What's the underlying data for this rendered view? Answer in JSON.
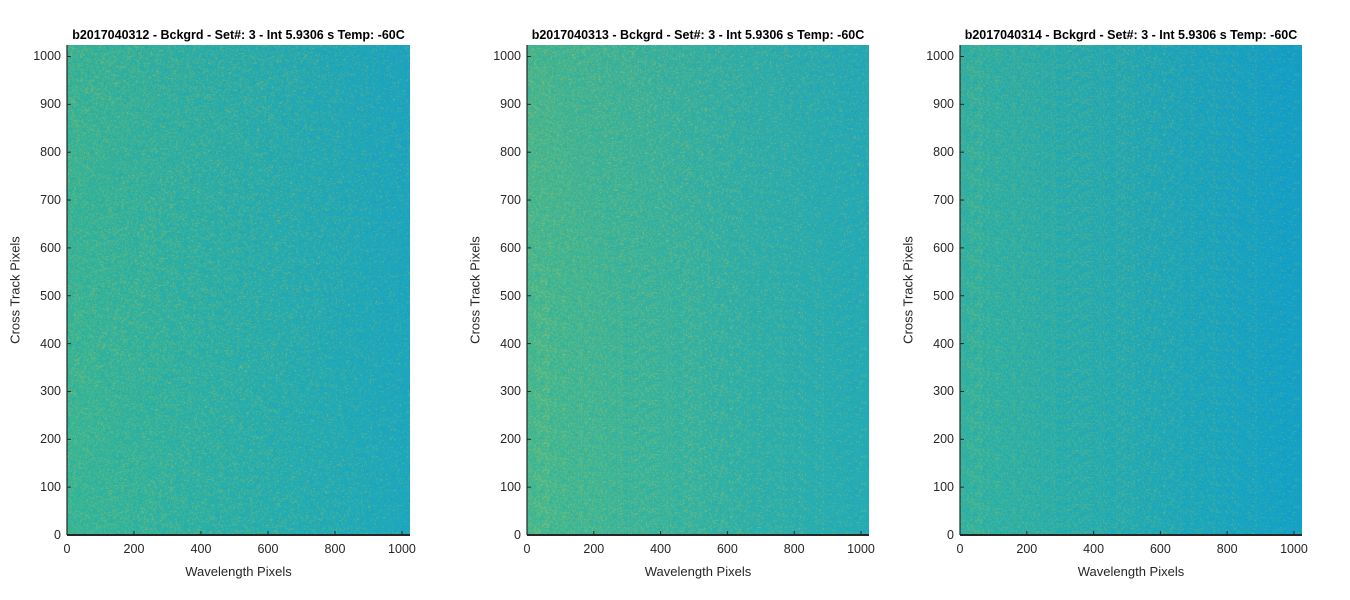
{
  "chart_data": [
    {
      "type": "heatmap",
      "title": "b2017040312 - Bckgrd - Set#: 3 - Int 5.9306 s Temp: -60C",
      "xlabel": "Wavelength Pixels",
      "ylabel": "Cross Track Pixels",
      "xlim": [
        0,
        1024
      ],
      "ylim": [
        0,
        1024
      ],
      "xticks": [
        "0",
        "200",
        "400",
        "600",
        "800",
        "1000"
      ],
      "yticks": [
        "0",
        "100",
        "200",
        "300",
        "400",
        "500",
        "600",
        "700",
        "800",
        "900",
        "1000"
      ],
      "xtick_values": [
        0,
        200,
        400,
        600,
        800,
        1000
      ],
      "ytick_values": [
        0,
        100,
        200,
        300,
        400,
        500,
        600,
        700,
        800,
        900,
        1000
      ],
      "colormap": "parula",
      "gradient": {
        "left_color": "#2fb39c",
        "right_color": "#1ea6bd",
        "noise_color": "#b8c24a"
      }
    },
    {
      "type": "heatmap",
      "title": "b2017040313 - Bckgrd - Set#: 3 - Int 5.9306 s Temp: -60C",
      "xlabel": "Wavelength Pixels",
      "ylabel": "Cross Track Pixels",
      "xlim": [
        0,
        1024
      ],
      "ylim": [
        0,
        1024
      ],
      "xticks": [
        "0",
        "200",
        "400",
        "600",
        "800",
        "1000"
      ],
      "yticks": [
        "0",
        "100",
        "200",
        "300",
        "400",
        "500",
        "600",
        "700",
        "800",
        "900",
        "1000"
      ],
      "xtick_values": [
        0,
        200,
        400,
        600,
        800,
        1000
      ],
      "ytick_values": [
        0,
        100,
        200,
        300,
        400,
        500,
        600,
        700,
        800,
        900,
        1000
      ],
      "colormap": "parula",
      "gradient": {
        "left_color": "#3cb694",
        "right_color": "#25aab5",
        "noise_color": "#c5c450"
      }
    },
    {
      "type": "heatmap",
      "title": "b2017040314 - Bckgrd - Set#: 3 - Int 5.9306 s Temp: -60C",
      "xlabel": "Wavelength Pixels",
      "ylabel": "Cross Track Pixels",
      "xlim": [
        0,
        1024
      ],
      "ylim": [
        0,
        1024
      ],
      "xticks": [
        "0",
        "200",
        "400",
        "600",
        "800",
        "1000"
      ],
      "yticks": [
        "0",
        "100",
        "200",
        "300",
        "400",
        "500",
        "600",
        "700",
        "800",
        "900",
        "1000"
      ],
      "xtick_values": [
        0,
        200,
        400,
        600,
        800,
        1000
      ],
      "ytick_values": [
        0,
        100,
        200,
        300,
        400,
        500,
        600,
        700,
        800,
        900,
        1000
      ],
      "colormap": "parula",
      "gradient": {
        "left_color": "#2bb0a6",
        "right_color": "#15a0c6",
        "noise_color": "#9fbf58"
      }
    }
  ]
}
